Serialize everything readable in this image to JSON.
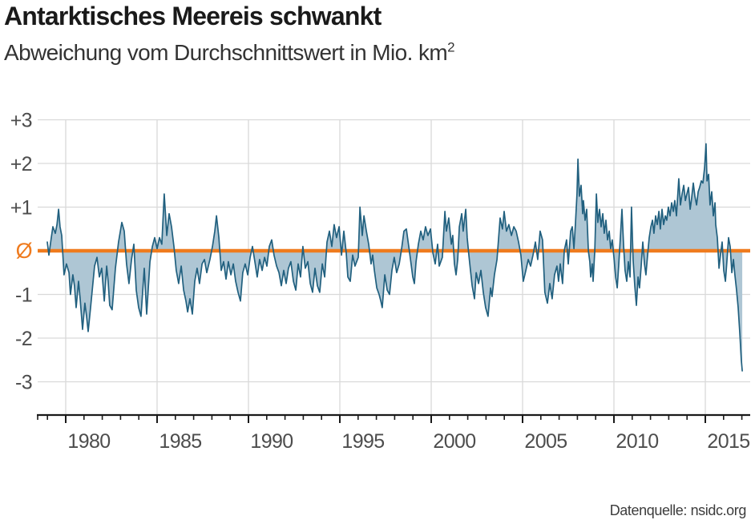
{
  "header": {
    "title": "Antarktisches Meereis schwankt",
    "subtitle": "Abweichung vom Durchschnittswert in Mio. km",
    "subtitle_superscript": "2"
  },
  "footer": {
    "source": "Datenquelle: nsidc.org"
  },
  "colors": {
    "line": "#21607F",
    "fill": "#AEC6D4",
    "zero_line": "#EF7B1E",
    "zero_label": "#EF7B1E",
    "grid": "#D9D9D9",
    "axis": "#1A1A1A",
    "tick_label": "#4D4D4D"
  },
  "chart_data": {
    "type": "area",
    "title": "Antarktisches Meereis schwankt",
    "subtitle": "Abweichung vom Durchschnittswert in Mio. km²",
    "grid": true,
    "legend": false,
    "ylim": [
      -3.8,
      3.0
    ],
    "x_range_years": [
      1978.5,
      2017.4
    ],
    "y_ticks": [
      {
        "value": 3,
        "label": "+3"
      },
      {
        "value": 2,
        "label": "+2"
      },
      {
        "value": 1,
        "label": "+1"
      },
      {
        "value": 0,
        "label": "Ø"
      },
      {
        "value": -1,
        "label": "-1"
      },
      {
        "value": -2,
        "label": "-2"
      },
      {
        "value": -3,
        "label": "-3"
      }
    ],
    "x_major_ticks": [
      1980,
      1985,
      1990,
      1995,
      2000,
      2005,
      2010,
      2015
    ],
    "x_minor_tick_start": 1979,
    "x_minor_tick_end": 2017,
    "zero_line_value": 0,
    "points": [
      [
        1978.99,
        0.2
      ],
      [
        1979.08,
        -0.1
      ],
      [
        1979.21,
        0.3
      ],
      [
        1979.3,
        0.55
      ],
      [
        1979.43,
        0.4
      ],
      [
        1979.52,
        0.6
      ],
      [
        1979.61,
        0.95
      ],
      [
        1979.69,
        0.55
      ],
      [
        1979.78,
        0.35
      ],
      [
        1979.91,
        -0.55
      ],
      [
        1980.04,
        -0.3
      ],
      [
        1980.18,
        -0.5
      ],
      [
        1980.26,
        -1.0
      ],
      [
        1980.39,
        -0.55
      ],
      [
        1980.48,
        -0.8
      ],
      [
        1980.57,
        -1.3
      ],
      [
        1980.7,
        -0.7
      ],
      [
        1980.79,
        -1.1
      ],
      [
        1980.92,
        -1.8
      ],
      [
        1981.05,
        -1.2
      ],
      [
        1981.14,
        -1.5
      ],
      [
        1981.23,
        -1.85
      ],
      [
        1981.36,
        -1.3
      ],
      [
        1981.45,
        -0.9
      ],
      [
        1981.58,
        -0.35
      ],
      [
        1981.71,
        -0.15
      ],
      [
        1981.84,
        -0.6
      ],
      [
        1981.97,
        -0.4
      ],
      [
        1982.11,
        -1.15
      ],
      [
        1982.24,
        -0.35
      ],
      [
        1982.32,
        -0.7
      ],
      [
        1982.41,
        -1.25
      ],
      [
        1982.54,
        -1.35
      ],
      [
        1982.72,
        -0.4
      ],
      [
        1982.89,
        0.2
      ],
      [
        1983.07,
        0.65
      ],
      [
        1983.2,
        0.45
      ],
      [
        1983.33,
        -0.3
      ],
      [
        1983.46,
        -0.75
      ],
      [
        1983.6,
        -0.2
      ],
      [
        1983.73,
        0.15
      ],
      [
        1983.86,
        -0.9
      ],
      [
        1983.99,
        -1.3
      ],
      [
        1984.12,
        -1.5
      ],
      [
        1984.3,
        -0.4
      ],
      [
        1984.43,
        -1.45
      ],
      [
        1984.61,
        -0.25
      ],
      [
        1984.74,
        0.1
      ],
      [
        1984.87,
        0.3
      ],
      [
        1985.0,
        0.05
      ],
      [
        1985.13,
        0.3
      ],
      [
        1985.26,
        0.15
      ],
      [
        1985.39,
        1.3
      ],
      [
        1985.53,
        0.35
      ],
      [
        1985.66,
        0.85
      ],
      [
        1985.79,
        0.55
      ],
      [
        1985.92,
        0.1
      ],
      [
        1986.05,
        -0.45
      ],
      [
        1986.18,
        -0.75
      ],
      [
        1986.32,
        -0.35
      ],
      [
        1986.45,
        -0.9
      ],
      [
        1986.58,
        -1.15
      ],
      [
        1986.67,
        -1.4
      ],
      [
        1986.8,
        -1.1
      ],
      [
        1986.93,
        -1.45
      ],
      [
        1987.06,
        -0.7
      ],
      [
        1987.19,
        -0.4
      ],
      [
        1987.32,
        -0.75
      ],
      [
        1987.46,
        -0.3
      ],
      [
        1987.59,
        -0.2
      ],
      [
        1987.72,
        -0.5
      ],
      [
        1987.89,
        -0.2
      ],
      [
        1988.03,
        0.1
      ],
      [
        1988.16,
        0.45
      ],
      [
        1988.25,
        0.8
      ],
      [
        1988.38,
        0.3
      ],
      [
        1988.51,
        -0.45
      ],
      [
        1988.64,
        -0.25
      ],
      [
        1988.77,
        -0.65
      ],
      [
        1988.9,
        -0.25
      ],
      [
        1989.04,
        -0.55
      ],
      [
        1989.17,
        -0.3
      ],
      [
        1989.3,
        -0.7
      ],
      [
        1989.43,
        -0.95
      ],
      [
        1989.56,
        -1.15
      ],
      [
        1989.69,
        -0.5
      ],
      [
        1989.82,
        -0.3
      ],
      [
        1989.96,
        -0.55
      ],
      [
        1990.09,
        -0.15
      ],
      [
        1990.22,
        0.1
      ],
      [
        1990.35,
        -0.25
      ],
      [
        1990.48,
        -0.6
      ],
      [
        1990.61,
        -0.2
      ],
      [
        1990.75,
        -0.45
      ],
      [
        1990.88,
        -0.15
      ],
      [
        1991.01,
        -0.35
      ],
      [
        1991.14,
        0.1
      ],
      [
        1991.27,
        0.25
      ],
      [
        1991.4,
        -0.1
      ],
      [
        1991.54,
        -0.35
      ],
      [
        1991.67,
        -0.5
      ],
      [
        1991.8,
        -0.8
      ],
      [
        1991.93,
        -0.45
      ],
      [
        1992.06,
        -0.75
      ],
      [
        1992.19,
        -0.4
      ],
      [
        1992.32,
        -0.25
      ],
      [
        1992.46,
        -0.7
      ],
      [
        1992.59,
        -0.9
      ],
      [
        1992.72,
        -0.3
      ],
      [
        1992.85,
        -0.6
      ],
      [
        1992.98,
        0.1
      ],
      [
        1993.11,
        -0.4
      ],
      [
        1993.25,
        -0.25
      ],
      [
        1993.38,
        -0.75
      ],
      [
        1993.51,
        -0.95
      ],
      [
        1993.64,
        -0.4
      ],
      [
        1993.77,
        -0.8
      ],
      [
        1993.9,
        -0.95
      ],
      [
        1994.04,
        -0.3
      ],
      [
        1994.17,
        -0.6
      ],
      [
        1994.3,
        0.2
      ],
      [
        1994.43,
        0.45
      ],
      [
        1994.56,
        0.1
      ],
      [
        1994.69,
        0.6
      ],
      [
        1994.82,
        0.3
      ],
      [
        1994.96,
        0.55
      ],
      [
        1995.09,
        -0.1
      ],
      [
        1995.22,
        0.45
      ],
      [
        1995.35,
        -0.05
      ],
      [
        1995.44,
        -0.6
      ],
      [
        1995.57,
        -0.7
      ],
      [
        1995.7,
        -0.1
      ],
      [
        1995.83,
        -0.35
      ],
      [
        1996.01,
        -0.15
      ],
      [
        1996.1,
        1.0
      ],
      [
        1996.23,
        0.35
      ],
      [
        1996.32,
        0.8
      ],
      [
        1996.45,
        0.45
      ],
      [
        1996.58,
        0.15
      ],
      [
        1996.71,
        -0.3
      ],
      [
        1996.8,
        -0.1
      ],
      [
        1996.89,
        -0.45
      ],
      [
        1997.02,
        -0.85
      ],
      [
        1997.15,
        -1.0
      ],
      [
        1997.24,
        -1.15
      ],
      [
        1997.32,
        -1.3
      ],
      [
        1997.46,
        -0.55
      ],
      [
        1997.59,
        -0.9
      ],
      [
        1997.72,
        -1.0
      ],
      [
        1997.85,
        -0.45
      ],
      [
        1997.98,
        -0.15
      ],
      [
        1998.11,
        -0.5
      ],
      [
        1998.25,
        -0.3
      ],
      [
        1998.38,
        0.05
      ],
      [
        1998.51,
        0.45
      ],
      [
        1998.64,
        0.5
      ],
      [
        1998.77,
        0.1
      ],
      [
        1998.9,
        -0.3
      ],
      [
        1998.99,
        -0.6
      ],
      [
        1999.08,
        -0.75
      ],
      [
        1999.17,
        -0.25
      ],
      [
        1999.3,
        0.15
      ],
      [
        1999.43,
        0.45
      ],
      [
        1999.56,
        0.25
      ],
      [
        1999.69,
        0.55
      ],
      [
        1999.82,
        0.35
      ],
      [
        1999.96,
        0.5
      ],
      [
        2000.09,
        -0.05
      ],
      [
        2000.22,
        -0.3
      ],
      [
        2000.35,
        0.15
      ],
      [
        2000.44,
        -0.35
      ],
      [
        2000.61,
        -0.15
      ],
      [
        2000.75,
        0.9
      ],
      [
        2000.83,
        0.45
      ],
      [
        2000.96,
        0.75
      ],
      [
        2001.1,
        0.15
      ],
      [
        2001.18,
        0.35
      ],
      [
        2001.27,
        -0.3
      ],
      [
        2001.36,
        -0.55
      ],
      [
        2001.45,
        -0.2
      ],
      [
        2001.54,
        0.55
      ],
      [
        2001.67,
        0.85
      ],
      [
        2001.75,
        0.45
      ],
      [
        2001.89,
        0.95
      ],
      [
        2001.97,
        0.3
      ],
      [
        2002.06,
        -0.1
      ],
      [
        2002.15,
        -0.45
      ],
      [
        2002.24,
        -0.8
      ],
      [
        2002.37,
        -1.1
      ],
      [
        2002.46,
        -0.5
      ],
      [
        2002.59,
        -0.75
      ],
      [
        2002.72,
        -0.45
      ],
      [
        2002.85,
        -0.95
      ],
      [
        2002.98,
        -1.3
      ],
      [
        2003.11,
        -1.5
      ],
      [
        2003.25,
        -0.85
      ],
      [
        2003.33,
        -1.05
      ],
      [
        2003.46,
        -0.55
      ],
      [
        2003.6,
        -0.2
      ],
      [
        2003.77,
        0.75
      ],
      [
        2003.9,
        0.5
      ],
      [
        2003.99,
        0.9
      ],
      [
        2004.12,
        0.45
      ],
      [
        2004.25,
        0.6
      ],
      [
        2004.39,
        0.35
      ],
      [
        2004.52,
        0.55
      ],
      [
        2004.65,
        0.45
      ],
      [
        2004.78,
        0.2
      ],
      [
        2004.91,
        -0.1
      ],
      [
        2005.04,
        -0.7
      ],
      [
        2005.18,
        -0.45
      ],
      [
        2005.31,
        -0.2
      ],
      [
        2005.44,
        -0.35
      ],
      [
        2005.57,
        -0.1
      ],
      [
        2005.7,
        0.2
      ],
      [
        2005.83,
        -0.2
      ],
      [
        2005.96,
        0.45
      ],
      [
        2006.09,
        0.25
      ],
      [
        2006.22,
        -0.95
      ],
      [
        2006.36,
        -1.2
      ],
      [
        2006.49,
        -0.75
      ],
      [
        2006.62,
        -1.1
      ],
      [
        2006.75,
        -0.55
      ],
      [
        2006.88,
        -0.35
      ],
      [
        2006.97,
        -0.7
      ],
      [
        2007.06,
        -0.3
      ],
      [
        2007.19,
        -0.75
      ],
      [
        2007.28,
        0.0
      ],
      [
        2007.41,
        0.25
      ],
      [
        2007.5,
        -0.3
      ],
      [
        2007.63,
        0.45
      ],
      [
        2007.72,
        0.55
      ],
      [
        2007.81,
        0.05
      ],
      [
        2007.89,
        0.6
      ],
      [
        2007.98,
        1.3
      ],
      [
        2008.03,
        2.1
      ],
      [
        2008.11,
        1.25
      ],
      [
        2008.2,
        1.5
      ],
      [
        2008.29,
        0.85
      ],
      [
        2008.33,
        1.15
      ],
      [
        2008.42,
        0.7
      ],
      [
        2008.51,
        0.95
      ],
      [
        2008.6,
        0.0
      ],
      [
        2008.68,
        -0.25
      ],
      [
        2008.73,
        -0.6
      ],
      [
        2008.81,
        -0.3
      ],
      [
        2008.86,
        -0.7
      ],
      [
        2008.95,
        0.0
      ],
      [
        2009.04,
        1.3
      ],
      [
        2009.12,
        0.65
      ],
      [
        2009.21,
        0.95
      ],
      [
        2009.3,
        0.55
      ],
      [
        2009.39,
        0.85
      ],
      [
        2009.47,
        0.4
      ],
      [
        2009.56,
        0.7
      ],
      [
        2009.65,
        0.25
      ],
      [
        2009.74,
        0.45
      ],
      [
        2009.82,
        0.05
      ],
      [
        2009.91,
        0.25
      ],
      [
        2010.0,
        -0.15
      ],
      [
        2010.09,
        -0.6
      ],
      [
        2010.18,
        -0.85
      ],
      [
        2010.26,
        -0.35
      ],
      [
        2010.35,
        0.3
      ],
      [
        2010.44,
        0.95
      ],
      [
        2010.53,
        0.1
      ],
      [
        2010.61,
        -0.45
      ],
      [
        2010.7,
        -0.7
      ],
      [
        2010.79,
        -0.25
      ],
      [
        2010.88,
        -0.6
      ],
      [
        2010.96,
        1.0
      ],
      [
        2011.05,
        -0.2
      ],
      [
        2011.14,
        -0.8
      ],
      [
        2011.23,
        -1.25
      ],
      [
        2011.32,
        -0.6
      ],
      [
        2011.4,
        -0.85
      ],
      [
        2011.49,
        -0.35
      ],
      [
        2011.58,
        0.2
      ],
      [
        2011.67,
        -0.3
      ],
      [
        2011.75,
        -0.55
      ],
      [
        2011.84,
        -0.1
      ],
      [
        2011.93,
        0.3
      ],
      [
        2012.02,
        0.55
      ],
      [
        2012.11,
        0.7
      ],
      [
        2012.19,
        0.4
      ],
      [
        2012.28,
        0.8
      ],
      [
        2012.37,
        0.6
      ],
      [
        2012.46,
        0.9
      ],
      [
        2012.54,
        0.5
      ],
      [
        2012.63,
        0.95
      ],
      [
        2012.72,
        0.6
      ],
      [
        2012.81,
        0.8
      ],
      [
        2012.89,
        0.7
      ],
      [
        2012.98,
        1.0
      ],
      [
        2013.07,
        0.8
      ],
      [
        2013.16,
        1.1
      ],
      [
        2013.25,
        0.9
      ],
      [
        2013.33,
        1.15
      ],
      [
        2013.42,
        0.8
      ],
      [
        2013.55,
        1.65
      ],
      [
        2013.64,
        1.05
      ],
      [
        2013.73,
        1.3
      ],
      [
        2013.82,
        1.5
      ],
      [
        2013.91,
        1.15
      ],
      [
        2013.99,
        1.3
      ],
      [
        2014.08,
        1.45
      ],
      [
        2014.17,
        0.95
      ],
      [
        2014.25,
        1.2
      ],
      [
        2014.34,
        1.55
      ],
      [
        2014.43,
        1.25
      ],
      [
        2014.52,
        1.05
      ],
      [
        2014.61,
        1.35
      ],
      [
        2014.69,
        1.45
      ],
      [
        2014.78,
        1.6
      ],
      [
        2014.87,
        1.55
      ],
      [
        2014.96,
        1.9
      ],
      [
        2015.04,
        2.45
      ],
      [
        2015.09,
        1.6
      ],
      [
        2015.18,
        1.75
      ],
      [
        2015.26,
        1.05
      ],
      [
        2015.35,
        1.35
      ],
      [
        2015.44,
        0.8
      ],
      [
        2015.53,
        1.1
      ],
      [
        2015.57,
        0.6
      ],
      [
        2015.66,
        0.3
      ],
      [
        2015.75,
        -0.4
      ],
      [
        2015.83,
        -0.1
      ],
      [
        2015.92,
        0.2
      ],
      [
        2016.01,
        -0.45
      ],
      [
        2016.1,
        -0.7
      ],
      [
        2016.18,
        -0.25
      ],
      [
        2016.27,
        0.3
      ],
      [
        2016.36,
        0.1
      ],
      [
        2016.45,
        -0.5
      ],
      [
        2016.54,
        -0.2
      ],
      [
        2016.62,
        -0.55
      ],
      [
        2016.71,
        -0.9
      ],
      [
        2016.8,
        -1.3
      ],
      [
        2016.89,
        -1.9
      ],
      [
        2016.97,
        -2.5
      ],
      [
        2017.02,
        -2.75
      ]
    ]
  }
}
